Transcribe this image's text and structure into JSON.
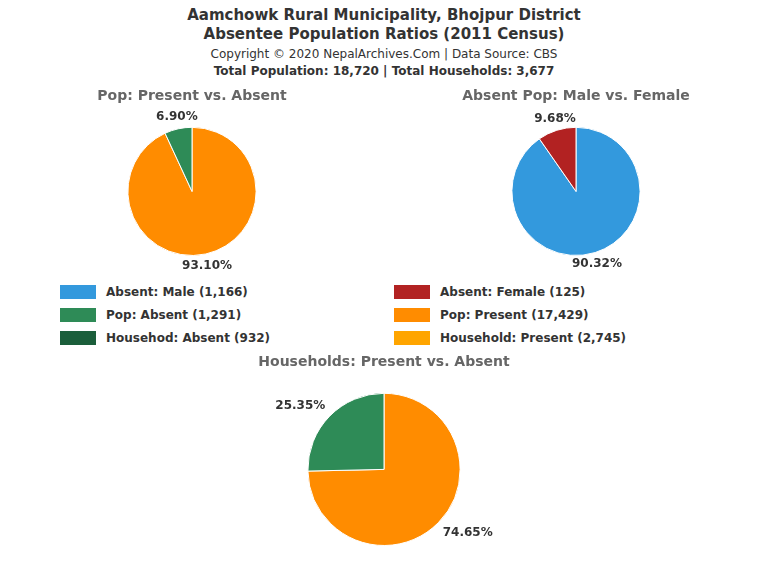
{
  "title": [
    "Aamchowk Rural Municipality, Bhojpur District",
    "Absentee Population Ratios (2011 Census)"
  ],
  "subtitle": "Copyright © 2020 NepalArchives.Com | Data Source: CBS",
  "annotations": [
    "Total Population: 18,720 | Total Households: 3,677"
  ],
  "legend_items": [
    {
      "name": "Absent: Male (1,166)",
      "color": "#3399DD"
    },
    {
      "name": "Absent: Female (125)",
      "color": "#B22222"
    },
    {
      "name": "Pop: Absent (1,291)",
      "color": "#2E8B57"
    },
    {
      "name": "Pop: Present (17,429)",
      "color": "#FF8C00"
    },
    {
      "name": "Househod: Absent (932)",
      "color": "#1B5E3B"
    },
    {
      "name": "Household: Present (2,745)",
      "color": "#FFA500"
    }
  ],
  "chart_data": [
    {
      "type": "pie",
      "title": "Pop: Present vs. Absent",
      "values": [
        93.1,
        6.9
      ],
      "value_labels": [
        "93.10%",
        "6.90%"
      ],
      "colors": [
        "#FF8C00",
        "#2E8B57"
      ],
      "data_labels": true
    },
    {
      "type": "pie",
      "title": "Absent Pop: Male vs. Female",
      "values": [
        90.32,
        9.68
      ],
      "value_labels": [
        "90.32%",
        "9.68%"
      ],
      "colors": [
        "#3399DD",
        "#B22222"
      ],
      "data_labels": true
    },
    {
      "type": "pie",
      "title": "Households: Present vs. Absent",
      "values": [
        74.65,
        25.35
      ],
      "value_labels": [
        "74.65%",
        "25.35%"
      ],
      "colors": [
        "#FF8C00",
        "#2E8B57"
      ],
      "data_labels": true
    }
  ]
}
